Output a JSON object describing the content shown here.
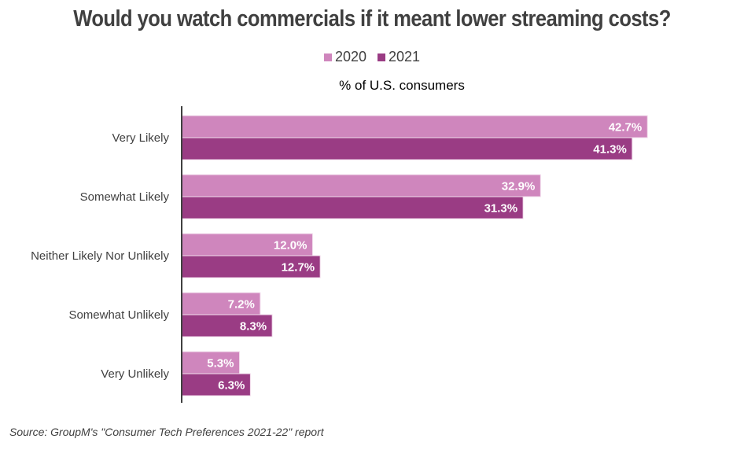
{
  "chart_data": {
    "type": "bar",
    "orientation": "horizontal",
    "title": "Would you watch commercials if it meant lower streaming costs?",
    "subtitle": "% of U.S. consumers",
    "xlabel": "",
    "ylabel": "",
    "categories": [
      "Very Likely",
      "Somewhat Likely",
      "Neither Likely Nor Unlikely",
      "Somewhat Unlikely",
      "Very Unlikely"
    ],
    "series": [
      {
        "name": "2020",
        "color": "#cf86bd",
        "values": [
          42.7,
          32.9,
          12.0,
          7.2,
          5.3
        ],
        "labels": [
          "42.7%",
          "32.9%",
          "12.0%",
          "7.2%",
          "5.3%"
        ]
      },
      {
        "name": "2021",
        "color": "#9a3c84",
        "values": [
          41.3,
          31.3,
          12.7,
          8.3,
          6.3
        ],
        "labels": [
          "41.3%",
          "31.3%",
          "12.7%",
          "8.3%",
          "6.3%"
        ]
      }
    ],
    "xlim": [
      0,
      50
    ],
    "grid": false,
    "legend_position": "top-center",
    "source": "Source: GroupM's \"Consumer Tech Preferences 2021-22\" report"
  }
}
